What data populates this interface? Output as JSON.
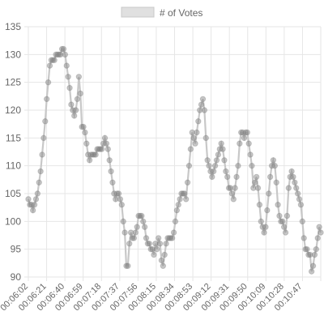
{
  "chart_data": {
    "type": "line",
    "title": "",
    "xlabel": "",
    "ylabel": "",
    "ylim": [
      90,
      135
    ],
    "y_ticks": [
      90,
      95,
      100,
      105,
      110,
      115,
      120,
      125,
      130,
      135
    ],
    "x_tick_labels": [
      "00:06:02",
      "00:06:21",
      "00:06:40",
      "00:06:59",
      "00:07:18",
      "00:07:37",
      "00:07:56",
      "00:08:15",
      "00:08:34",
      "00:08:53",
      "00:09:12",
      "00:09:31",
      "00:09:50",
      "00:10:09",
      "00:10:28",
      "00:10:47"
    ],
    "grid": true,
    "legend_position": "top",
    "colors": {
      "line": "#c8c8c8",
      "point": "rgba(130,130,130,0.45)",
      "legend_fill": "#e0e0e0",
      "grid": "#e6e6e6"
    },
    "series": [
      {
        "name": "# of Votes",
        "values": [
          104,
          103,
          103,
          102,
          103,
          104,
          105,
          107,
          109,
          112,
          115,
          118,
          122,
          125,
          128,
          129,
          129,
          129,
          130,
          130,
          130,
          130,
          131,
          131,
          130,
          128,
          126,
          124,
          121,
          120,
          119,
          120,
          122,
          126,
          123,
          117,
          117,
          116,
          114,
          112,
          111,
          112,
          112,
          112,
          112,
          113,
          113,
          113,
          113,
          114,
          115,
          114,
          113,
          111,
          109,
          107,
          105,
          104,
          105,
          105,
          104,
          103,
          100,
          98,
          92,
          92,
          96,
          98,
          97,
          97,
          98,
          99,
          101,
          101,
          101,
          100,
          99,
          97,
          96,
          96,
          95,
          95,
          94,
          96,
          95,
          97,
          96,
          93,
          92,
          94,
          96,
          97,
          97,
          97,
          97,
          98,
          100,
          102,
          103,
          104,
          105,
          105,
          105,
          104,
          107,
          110,
          113,
          116,
          115,
          114,
          116,
          118,
          120,
          121,
          122,
          120,
          115,
          111,
          110,
          109,
          108,
          109,
          110,
          111,
          112,
          113,
          114,
          113,
          111,
          109,
          108,
          106,
          106,
          105,
          104,
          106,
          108,
          110,
          114,
          116,
          116,
          115,
          116,
          116,
          114,
          112,
          110,
          106,
          107,
          108,
          106,
          103,
          100,
          99,
          98,
          99,
          102,
          105,
          108,
          110,
          111,
          110,
          107,
          103,
          101,
          100,
          100,
          99,
          98,
          101,
          106,
          108,
          109,
          108,
          107,
          106,
          105,
          104,
          103,
          100,
          97,
          95,
          95,
          94,
          94,
          91,
          92,
          94,
          95,
          97,
          99,
          98
        ]
      }
    ]
  }
}
